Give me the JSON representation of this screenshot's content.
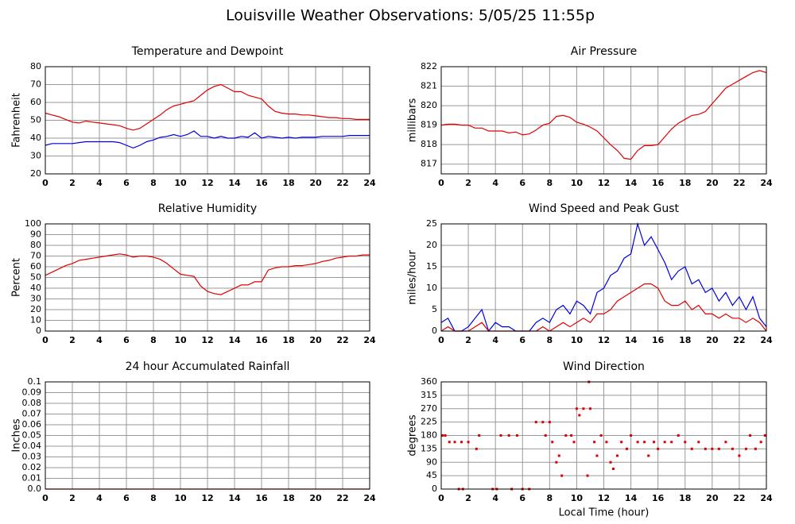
{
  "title": "Louisville Weather Observations: 5/05/25 11:55p",
  "chart_data": [
    {
      "type": "line",
      "title": "Temperature and Dewpoint",
      "ylabel": "Fahrenheit",
      "x": [
        0,
        0.5,
        1,
        1.5,
        2,
        2.5,
        3,
        3.5,
        4,
        4.5,
        5,
        5.5,
        6,
        6.5,
        7,
        7.5,
        8,
        8.5,
        9,
        9.5,
        10,
        10.5,
        11,
        11.5,
        12,
        12.5,
        13,
        13.5,
        14,
        14.5,
        15,
        15.5,
        16,
        16.5,
        17,
        17.5,
        18,
        18.5,
        19,
        19.5,
        20,
        20.5,
        21,
        21.5,
        22,
        22.5,
        23,
        23.5,
        24
      ],
      "series": [
        {
          "color": "#e00000",
          "values": [
            54,
            53,
            52,
            50.5,
            49,
            48.5,
            49.5,
            49,
            48.5,
            48,
            47.5,
            47,
            45.5,
            44.5,
            45.5,
            48,
            50.5,
            53,
            56,
            58,
            59,
            60,
            61,
            64,
            67,
            69,
            70,
            68,
            66,
            66,
            64,
            63,
            62,
            58,
            55,
            54,
            53.5,
            53.5,
            53,
            53,
            52.5,
            52,
            51.5,
            51.5,
            51,
            51,
            50.5,
            50.5,
            50.5
          ]
        },
        {
          "color": "#0000e0",
          "values": [
            36,
            37,
            37,
            37,
            37,
            37.5,
            38,
            38,
            38,
            38,
            38,
            37.5,
            36,
            34.5,
            36,
            38,
            39,
            40.5,
            41,
            42,
            41,
            42,
            44,
            41,
            41,
            40,
            41,
            40,
            40,
            41,
            40.5,
            43,
            40,
            41,
            40.5,
            40,
            40.5,
            40,
            40.5,
            40.5,
            40.5,
            41,
            41,
            41,
            41,
            41.5,
            41.5,
            41.5,
            41.5
          ]
        }
      ],
      "xlim": [
        0,
        24
      ],
      "xticks": [
        0,
        2,
        4,
        6,
        8,
        10,
        12,
        14,
        16,
        18,
        20,
        22,
        24
      ],
      "ylim": [
        20,
        80
      ],
      "yticks": [
        20,
        30,
        40,
        50,
        60,
        70,
        80
      ],
      "grid": true
    },
    {
      "type": "line",
      "title": "Air Pressure",
      "ylabel": "millibars",
      "x": [
        0,
        0.5,
        1,
        1.5,
        2,
        2.5,
        3,
        3.5,
        4,
        4.5,
        5,
        5.5,
        6,
        6.5,
        7,
        7.5,
        8,
        8.5,
        9,
        9.5,
        10,
        10.5,
        11,
        11.5,
        12,
        12.5,
        13,
        13.5,
        14,
        14.5,
        15,
        15.5,
        16,
        16.5,
        17,
        17.5,
        18,
        18.5,
        19,
        19.5,
        20,
        20.5,
        21,
        21.5,
        22,
        22.5,
        23,
        23.5,
        24
      ],
      "series": [
        {
          "color": "#e00000",
          "values": [
            819,
            819.05,
            819.05,
            819,
            819,
            818.85,
            818.85,
            818.7,
            818.7,
            818.7,
            818.6,
            818.65,
            818.5,
            818.55,
            818.75,
            819,
            819.1,
            819.45,
            819.5,
            819.4,
            819.15,
            819.05,
            818.9,
            818.7,
            818.35,
            818,
            817.7,
            817.3,
            817.25,
            817.7,
            817.95,
            817.95,
            818,
            818.4,
            818.8,
            819.1,
            819.3,
            819.5,
            819.55,
            819.7,
            820.1,
            820.5,
            820.9,
            821.1,
            821.3,
            821.5,
            821.7,
            821.8,
            821.7
          ]
        }
      ],
      "xlim": [
        0,
        24
      ],
      "xticks": [
        0,
        2,
        4,
        6,
        8,
        10,
        12,
        14,
        16,
        18,
        20,
        22,
        24
      ],
      "ylim": [
        816.5,
        822
      ],
      "yticks": [
        817,
        818,
        819,
        820,
        821,
        822
      ],
      "grid": true
    },
    {
      "type": "line",
      "title": "Relative Humidity",
      "ylabel": "Percent",
      "x": [
        0,
        0.5,
        1,
        1.5,
        2,
        2.5,
        3,
        3.5,
        4,
        4.5,
        5,
        5.5,
        6,
        6.5,
        7,
        7.5,
        8,
        8.5,
        9,
        9.5,
        10,
        10.5,
        11,
        11.5,
        12,
        12.5,
        13,
        13.5,
        14,
        14.5,
        15,
        15.5,
        16,
        16.5,
        17,
        17.5,
        18,
        18.5,
        19,
        19.5,
        20,
        20.5,
        21,
        21.5,
        22,
        22.5,
        23,
        23.5,
        24
      ],
      "series": [
        {
          "color": "#e00000",
          "values": [
            52,
            55,
            58,
            61,
            63,
            66,
            67,
            68,
            69,
            70,
            71,
            72,
            71,
            69,
            70,
            70,
            69,
            67,
            63,
            58,
            53,
            52,
            51,
            42,
            37,
            35,
            34,
            37,
            40,
            43,
            43,
            46,
            46,
            57,
            59,
            60,
            60,
            61,
            61,
            62,
            63,
            65,
            66,
            68,
            69,
            70,
            70,
            71,
            71
          ]
        }
      ],
      "xlim": [
        0,
        24
      ],
      "xticks": [
        0,
        2,
        4,
        6,
        8,
        10,
        12,
        14,
        16,
        18,
        20,
        22,
        24
      ],
      "ylim": [
        0,
        100
      ],
      "yticks": [
        0,
        10,
        20,
        30,
        40,
        50,
        60,
        70,
        80,
        90,
        100
      ],
      "grid": true
    },
    {
      "type": "line",
      "title": "Wind Speed and Peak Gust",
      "ylabel": "miles/hour",
      "x": [
        0,
        0.5,
        1,
        1.5,
        2,
        2.5,
        3,
        3.5,
        4,
        4.5,
        5,
        5.5,
        6,
        6.5,
        7,
        7.5,
        8,
        8.5,
        9,
        9.5,
        10,
        10.5,
        11,
        11.5,
        12,
        12.5,
        13,
        13.5,
        14,
        14.5,
        15,
        15.5,
        16,
        16.5,
        17,
        17.5,
        18,
        18.5,
        19,
        19.5,
        20,
        20.5,
        21,
        21.5,
        22,
        22.5,
        23,
        23.5,
        24
      ],
      "series": [
        {
          "color": "#0000e0",
          "values": [
            2,
            3,
            0,
            0,
            1,
            3,
            5,
            0,
            2,
            1,
            1,
            0,
            0,
            0,
            2,
            3,
            2,
            5,
            6,
            4,
            7,
            6,
            4,
            9,
            10,
            13,
            14,
            17,
            18,
            25,
            20,
            22,
            19,
            16,
            12,
            14,
            15,
            11,
            12,
            9,
            10,
            7,
            9,
            6,
            8,
            5,
            8,
            3,
            1
          ]
        },
        {
          "color": "#e00000",
          "values": [
            0,
            1,
            0,
            0,
            0,
            1,
            2,
            0,
            0,
            0,
            0,
            0,
            0,
            0,
            0,
            1,
            0,
            1,
            2,
            1,
            2,
            3,
            2,
            4,
            4,
            5,
            7,
            8,
            9,
            10,
            11,
            11,
            10,
            7,
            6,
            6,
            7,
            5,
            6,
            4,
            4,
            3,
            4,
            3,
            3,
            2,
            3,
            2,
            0
          ]
        }
      ],
      "xlim": [
        0,
        24
      ],
      "xticks": [
        0,
        2,
        4,
        6,
        8,
        10,
        12,
        14,
        16,
        18,
        20,
        22,
        24
      ],
      "ylim": [
        0,
        25
      ],
      "yticks": [
        0,
        5,
        10,
        15,
        20,
        25
      ],
      "grid": true
    },
    {
      "type": "line",
      "title": "24 hour Accumulated Rainfall",
      "ylabel": "Inches",
      "x": [
        0,
        24
      ],
      "series": [
        {
          "color": "#e00000",
          "values": [
            0,
            0
          ]
        }
      ],
      "xlim": [
        0,
        24
      ],
      "xticks": [
        0,
        2,
        4,
        6,
        8,
        10,
        12,
        14,
        16,
        18,
        20,
        22,
        24
      ],
      "ylim": [
        0,
        0.1
      ],
      "yticks": [
        {
          "value": 0,
          "label": "0.0"
        },
        0.01,
        0.02,
        0.03,
        0.04,
        0.05,
        0.06,
        0.07,
        0.08,
        0.09,
        0.1
      ],
      "grid": true
    },
    {
      "type": "scatter",
      "title": "Wind Direction",
      "ylabel": "degrees",
      "xlabel": "Local Time (hour)",
      "color": "#e00000",
      "x": [
        0.1,
        0.3,
        0.6,
        1,
        1.5,
        2,
        2.6,
        2.8,
        1.3,
        1.6,
        3.8,
        4.1,
        4.4,
        5,
        5.6,
        5.2,
        6,
        6.5,
        7,
        7.5,
        8,
        7.7,
        8.2,
        8.5,
        8.7,
        8.9,
        9.2,
        9.6,
        9.8,
        10,
        10.2,
        10.5,
        10.8,
        10.9,
        11,
        11.3,
        11.5,
        11.8,
        12.2,
        12.5,
        12.7,
        13,
        13.3,
        13.7,
        14,
        14.5,
        15,
        15.3,
        15.7,
        16,
        16.5,
        17,
        17.5,
        18,
        18.5,
        19,
        19.5,
        20,
        20.5,
        21,
        21.5,
        22,
        22.5,
        22.8,
        23.2,
        23.6,
        23.9
      ],
      "values": [
        180,
        180,
        158,
        158,
        158,
        158,
        135,
        180,
        0,
        0,
        0,
        0,
        180,
        180,
        180,
        0,
        0,
        0,
        225,
        225,
        225,
        180,
        158,
        90,
        112,
        45,
        180,
        180,
        158,
        270,
        248,
        270,
        45,
        360,
        270,
        158,
        112,
        180,
        158,
        90,
        68,
        112,
        158,
        135,
        180,
        158,
        158,
        112,
        158,
        135,
        158,
        158,
        180,
        158,
        135,
        158,
        135,
        135,
        135,
        158,
        135,
        112,
        135,
        180,
        135,
        158,
        180
      ],
      "xlim": [
        0,
        24
      ],
      "xticks": [
        0,
        2,
        4,
        6,
        8,
        10,
        12,
        14,
        16,
        18,
        20,
        22,
        24
      ],
      "ylim": [
        0,
        360
      ],
      "yticks": [
        0,
        45,
        90,
        135,
        180,
        225,
        270,
        315,
        360
      ],
      "grid": true
    }
  ]
}
